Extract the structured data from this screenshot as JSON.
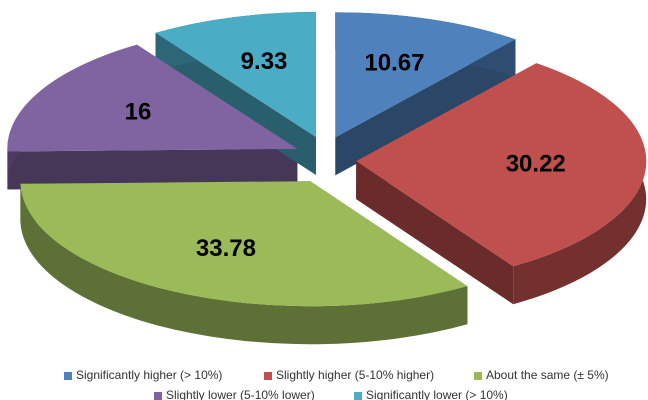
{
  "chart_data": {
    "type": "pie",
    "style": "3d-exploded",
    "categories": [
      "Significantly higher (> 10%)",
      "Slightly higher (5-10% higher)",
      "About the same (± 5%)",
      "Slightly lower (5-10% lower)",
      "Significantly lower (> 10%)"
    ],
    "values": [
      10.67,
      30.22,
      33.78,
      16,
      9.33
    ],
    "colors": [
      "#4f81bd",
      "#c0504d",
      "#9bbb59",
      "#8064a2",
      "#4bacc6"
    ],
    "legend": "bottom"
  }
}
